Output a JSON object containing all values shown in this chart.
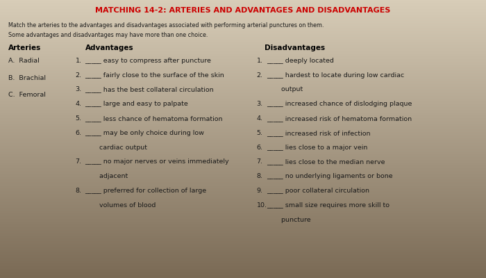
{
  "title": "MATCHING 14-2: ARTERIES AND ADVANTAGES AND DISADVANTAGES",
  "title_color": "#cc0000",
  "bg_color_top": "#d8cdb8",
  "bg_color_bottom": "#7a6a55",
  "instructions_line1": "Match the arteries to the advantages and disadvantages associated with performing arterial punctures on them.",
  "instructions_line2": "Some advantages and disadvantages may have more than one choice.",
  "arteries_header": "Arteries",
  "advantages_header": "Advantages",
  "disadvantages_header": "Disadvantages",
  "arteries": [
    "A.  Radial",
    "B.  Brachial",
    "C.  Femoral"
  ],
  "advantages": [
    [
      "1.",
      "_____ easy to compress after puncture"
    ],
    [
      "2.",
      "_____ fairly close to the surface of the skin"
    ],
    [
      "3.",
      "_____ has the best collateral circulation"
    ],
    [
      "4.",
      "_____ large and easy to palpate"
    ],
    [
      "5.",
      "_____ less chance of hematoma formation"
    ],
    [
      "6.",
      "_____ may be only choice during low"
    ],
    [
      "",
      "       cardiac output"
    ],
    [
      "7.",
      "_____ no major nerves or veins immediately"
    ],
    [
      "",
      "       adjacent"
    ],
    [
      "8.",
      "_____ preferred for collection of large"
    ],
    [
      "",
      "       volumes of blood"
    ]
  ],
  "disadvantages": [
    [
      "1.",
      "_____ deeply located"
    ],
    [
      "2.",
      "_____ hardest to locate during low cardiac"
    ],
    [
      "",
      "       output"
    ],
    [
      "3.",
      "_____ increased chance of dislodging plaque"
    ],
    [
      "4.",
      "_____ increased risk of hematoma formation"
    ],
    [
      "5.",
      "_____ increased risk of infection"
    ],
    [
      "6.",
      "_____ lies close to a major vein"
    ],
    [
      "7.",
      "_____ lies close to the median nerve"
    ],
    [
      "8.",
      "_____ no underlying ligaments or bone"
    ],
    [
      "9.",
      "_____ poor collateral circulation"
    ],
    [
      "10.",
      "_____ small size requires more skill to"
    ],
    [
      "",
      "       puncture"
    ]
  ],
  "text_color": "#1a1a1a",
  "header_color": "#000000",
  "title_fontsize": 8.0,
  "body_fontsize": 6.8,
  "header_fontsize": 7.5
}
